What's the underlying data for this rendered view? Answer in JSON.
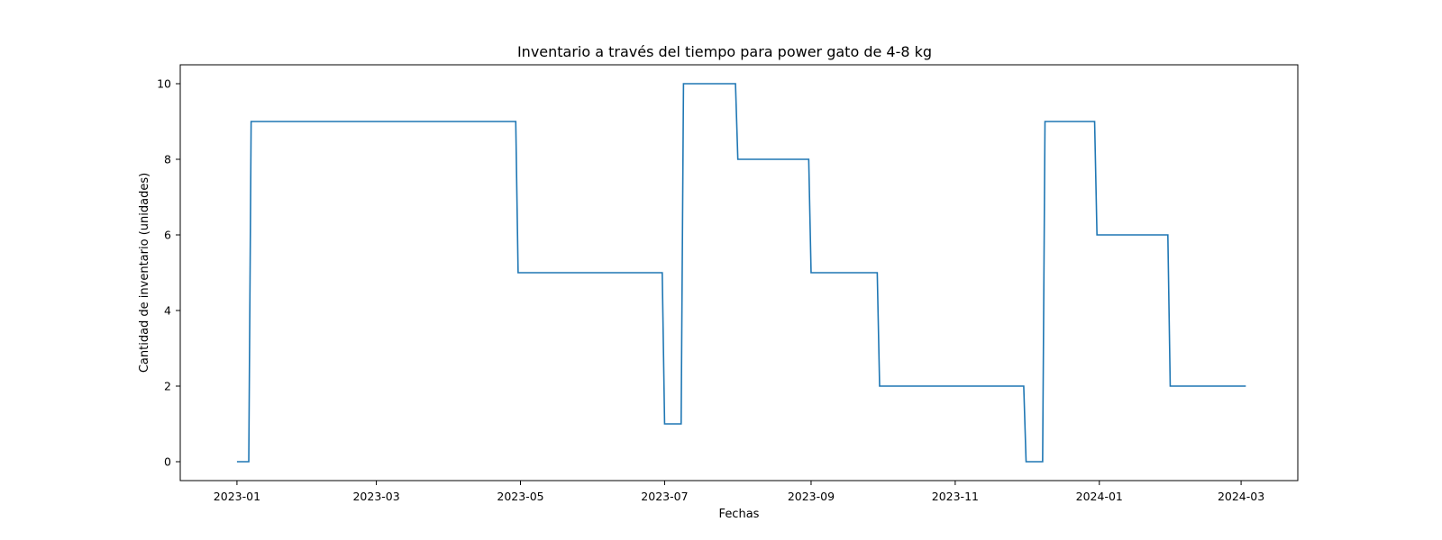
{
  "chart_data": {
    "type": "line",
    "title": "Inventario a través del tiempo para power gato de 4-8 kg",
    "xlabel": "Fechas",
    "ylabel": "Cantidad de inventario (unidades)",
    "x_tick_labels": [
      "2023-01",
      "2023-03",
      "2023-05",
      "2023-07",
      "2023-09",
      "2023-11",
      "2024-01",
      "2024-03"
    ],
    "y_ticks": [
      0,
      2,
      4,
      6,
      8,
      10
    ],
    "xlim": [
      "2022-12-08",
      "2024-03-25"
    ],
    "ylim": [
      -0.5,
      10.5
    ],
    "grid": false,
    "legend": "none",
    "line_color": "#1f77b4",
    "series": [
      {
        "x": [
          "2023-01-01",
          "2023-01-06",
          "2023-01-07",
          "2023-04-29",
          "2023-04-30",
          "2023-06-30",
          "2023-07-01",
          "2023-07-08",
          "2023-07-09",
          "2023-07-31",
          "2023-08-01",
          "2023-08-31",
          "2023-09-01",
          "2023-09-29",
          "2023-09-30",
          "2023-11-30",
          "2023-12-01",
          "2023-12-08",
          "2023-12-09",
          "2023-12-30",
          "2023-12-31",
          "2024-01-30",
          "2024-01-31",
          "2024-03-03"
        ],
        "y": [
          0,
          0,
          9,
          9,
          5,
          5,
          1,
          1,
          10,
          10,
          8,
          8,
          5,
          5,
          2,
          2,
          0,
          0,
          9,
          9,
          6,
          6,
          2,
          2
        ]
      }
    ]
  }
}
